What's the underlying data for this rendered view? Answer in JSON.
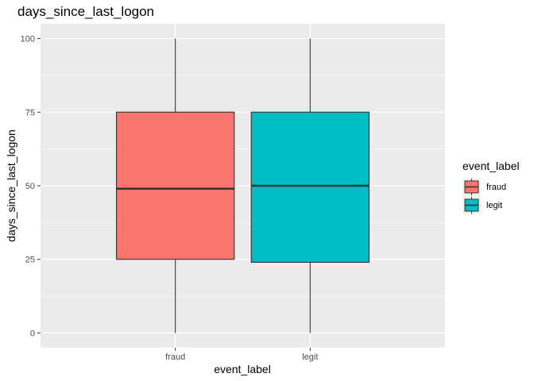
{
  "chart_data": {
    "type": "boxplot",
    "title": "days_since_last_logon",
    "xlabel": "event_label",
    "ylabel": "days_since_last_logon",
    "categories": [
      "fraud",
      "legit"
    ],
    "boxes": [
      {
        "category": "fraud",
        "min": 0,
        "q1": 25,
        "median": 49,
        "q3": 75,
        "max": 100,
        "color": "#F8766D"
      },
      {
        "category": "legit",
        "min": 0,
        "q1": 24,
        "median": 50,
        "q3": 75,
        "max": 100,
        "color": "#00BFC4"
      }
    ],
    "ylim": [
      -5,
      105
    ],
    "yticks": [
      0,
      25,
      50,
      75,
      100
    ],
    "grid": true,
    "panel_background": "#EBEBEB",
    "legend": {
      "title": "event_label",
      "placement": "right",
      "entries": [
        {
          "label": "fraud",
          "color": "#F8766D"
        },
        {
          "label": "legit",
          "color": "#00BFC4"
        }
      ]
    }
  }
}
